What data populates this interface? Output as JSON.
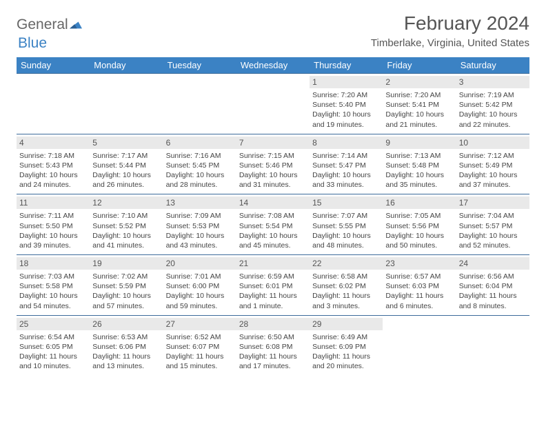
{
  "logo": {
    "word1": "General",
    "word2": "Blue",
    "accent_color": "#3b82c4"
  },
  "title": "February 2024",
  "location": "Timberlake, Virginia, United States",
  "colors": {
    "header_bg": "#3b82c4",
    "row_border": "#3b6a9a",
    "daynum_bg": "#e9e9e9"
  },
  "days_of_week": [
    "Sunday",
    "Monday",
    "Tuesday",
    "Wednesday",
    "Thursday",
    "Friday",
    "Saturday"
  ],
  "leading_blanks": 4,
  "cells": [
    {
      "n": "1",
      "sunrise": "7:20 AM",
      "sunset": "5:40 PM",
      "daylight": "10 hours and 19 minutes."
    },
    {
      "n": "2",
      "sunrise": "7:20 AM",
      "sunset": "5:41 PM",
      "daylight": "10 hours and 21 minutes."
    },
    {
      "n": "3",
      "sunrise": "7:19 AM",
      "sunset": "5:42 PM",
      "daylight": "10 hours and 22 minutes."
    },
    {
      "n": "4",
      "sunrise": "7:18 AM",
      "sunset": "5:43 PM",
      "daylight": "10 hours and 24 minutes."
    },
    {
      "n": "5",
      "sunrise": "7:17 AM",
      "sunset": "5:44 PM",
      "daylight": "10 hours and 26 minutes."
    },
    {
      "n": "6",
      "sunrise": "7:16 AM",
      "sunset": "5:45 PM",
      "daylight": "10 hours and 28 minutes."
    },
    {
      "n": "7",
      "sunrise": "7:15 AM",
      "sunset": "5:46 PM",
      "daylight": "10 hours and 31 minutes."
    },
    {
      "n": "8",
      "sunrise": "7:14 AM",
      "sunset": "5:47 PM",
      "daylight": "10 hours and 33 minutes."
    },
    {
      "n": "9",
      "sunrise": "7:13 AM",
      "sunset": "5:48 PM",
      "daylight": "10 hours and 35 minutes."
    },
    {
      "n": "10",
      "sunrise": "7:12 AM",
      "sunset": "5:49 PM",
      "daylight": "10 hours and 37 minutes."
    },
    {
      "n": "11",
      "sunrise": "7:11 AM",
      "sunset": "5:50 PM",
      "daylight": "10 hours and 39 minutes."
    },
    {
      "n": "12",
      "sunrise": "7:10 AM",
      "sunset": "5:52 PM",
      "daylight": "10 hours and 41 minutes."
    },
    {
      "n": "13",
      "sunrise": "7:09 AM",
      "sunset": "5:53 PM",
      "daylight": "10 hours and 43 minutes."
    },
    {
      "n": "14",
      "sunrise": "7:08 AM",
      "sunset": "5:54 PM",
      "daylight": "10 hours and 45 minutes."
    },
    {
      "n": "15",
      "sunrise": "7:07 AM",
      "sunset": "5:55 PM",
      "daylight": "10 hours and 48 minutes."
    },
    {
      "n": "16",
      "sunrise": "7:05 AM",
      "sunset": "5:56 PM",
      "daylight": "10 hours and 50 minutes."
    },
    {
      "n": "17",
      "sunrise": "7:04 AM",
      "sunset": "5:57 PM",
      "daylight": "10 hours and 52 minutes."
    },
    {
      "n": "18",
      "sunrise": "7:03 AM",
      "sunset": "5:58 PM",
      "daylight": "10 hours and 54 minutes."
    },
    {
      "n": "19",
      "sunrise": "7:02 AM",
      "sunset": "5:59 PM",
      "daylight": "10 hours and 57 minutes."
    },
    {
      "n": "20",
      "sunrise": "7:01 AM",
      "sunset": "6:00 PM",
      "daylight": "10 hours and 59 minutes."
    },
    {
      "n": "21",
      "sunrise": "6:59 AM",
      "sunset": "6:01 PM",
      "daylight": "11 hours and 1 minute."
    },
    {
      "n": "22",
      "sunrise": "6:58 AM",
      "sunset": "6:02 PM",
      "daylight": "11 hours and 3 minutes."
    },
    {
      "n": "23",
      "sunrise": "6:57 AM",
      "sunset": "6:03 PM",
      "daylight": "11 hours and 6 minutes."
    },
    {
      "n": "24",
      "sunrise": "6:56 AM",
      "sunset": "6:04 PM",
      "daylight": "11 hours and 8 minutes."
    },
    {
      "n": "25",
      "sunrise": "6:54 AM",
      "sunset": "6:05 PM",
      "daylight": "11 hours and 10 minutes."
    },
    {
      "n": "26",
      "sunrise": "6:53 AM",
      "sunset": "6:06 PM",
      "daylight": "11 hours and 13 minutes."
    },
    {
      "n": "27",
      "sunrise": "6:52 AM",
      "sunset": "6:07 PM",
      "daylight": "11 hours and 15 minutes."
    },
    {
      "n": "28",
      "sunrise": "6:50 AM",
      "sunset": "6:08 PM",
      "daylight": "11 hours and 17 minutes."
    },
    {
      "n": "29",
      "sunrise": "6:49 AM",
      "sunset": "6:09 PM",
      "daylight": "11 hours and 20 minutes."
    }
  ],
  "labels": {
    "sunrise": "Sunrise:",
    "sunset": "Sunset:",
    "daylight": "Daylight:"
  }
}
